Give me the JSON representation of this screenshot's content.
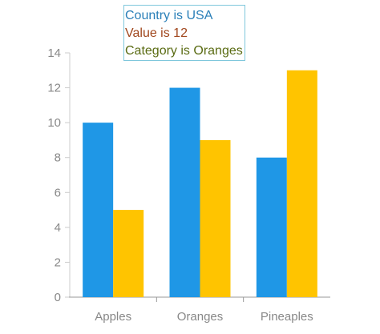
{
  "tooltip": {
    "lines": [
      {
        "text": "Country is USA",
        "color": "#2a7fb8"
      },
      {
        "text": "Value is 12",
        "color": "#a0461c"
      },
      {
        "text": "Category is Oranges",
        "color": "#5a6b12"
      }
    ]
  },
  "chart_data": {
    "type": "bar",
    "categories": [
      "Apples",
      "Oranges",
      "Pineaples"
    ],
    "series": [
      {
        "values": [
          10,
          12,
          8
        ],
        "color": "#1f97e6"
      },
      {
        "values": [
          5,
          9,
          13
        ],
        "color": "#ffc400"
      }
    ],
    "yticks": [
      0,
      2,
      4,
      6,
      8,
      10,
      12,
      14
    ],
    "ylim": [
      0,
      14
    ],
    "grid": false,
    "legend": "none"
  }
}
